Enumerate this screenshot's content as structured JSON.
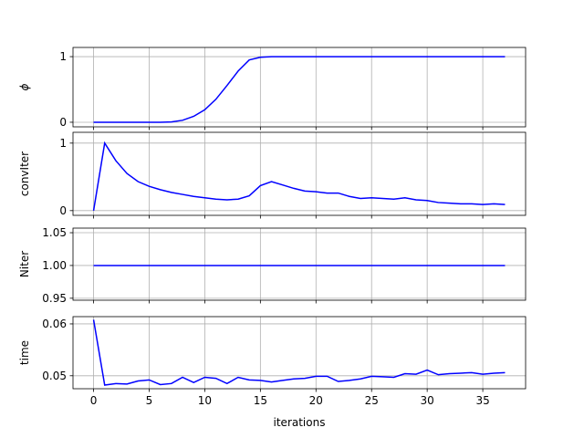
{
  "chart_data": [
    {
      "type": "line",
      "ylabel": "ϕ",
      "color": "#0000ff",
      "grid": true,
      "show_xtick_labels": false,
      "x": [
        0,
        1,
        2,
        3,
        4,
        5,
        6,
        7,
        8,
        9,
        10,
        11,
        12,
        13,
        14,
        15,
        16,
        17,
        18,
        19,
        20,
        21,
        22,
        23,
        24,
        25,
        26,
        27,
        28,
        29,
        30,
        31,
        32,
        33,
        34,
        35,
        36,
        37
      ],
      "values": [
        0,
        0,
        0,
        0,
        0,
        0,
        0,
        0.005,
        0.03,
        0.09,
        0.19,
        0.35,
        0.56,
        0.78,
        0.95,
        0.99,
        1,
        1,
        1,
        1,
        1,
        1,
        1,
        1,
        1,
        1,
        1,
        1,
        1,
        1,
        1,
        1,
        1,
        1,
        1,
        1,
        1,
        1
      ],
      "xlim": [
        -1.85,
        38.85
      ],
      "xticks": [
        0,
        5,
        10,
        15,
        20,
        25,
        30,
        35
      ],
      "ylim": [
        -0.07,
        1.14
      ],
      "yticks": [
        0,
        1
      ]
    },
    {
      "type": "line",
      "ylabel": "convIter",
      "color": "#0000ff",
      "grid": true,
      "show_xtick_labels": false,
      "x": [
        0,
        1,
        2,
        3,
        4,
        5,
        6,
        7,
        8,
        9,
        10,
        11,
        12,
        13,
        14,
        15,
        16,
        17,
        18,
        19,
        20,
        21,
        22,
        23,
        24,
        25,
        26,
        27,
        28,
        29,
        30,
        31,
        32,
        33,
        34,
        35,
        36,
        37
      ],
      "values": [
        0,
        1,
        0.74,
        0.55,
        0.43,
        0.36,
        0.31,
        0.27,
        0.24,
        0.21,
        0.19,
        0.17,
        0.16,
        0.17,
        0.22,
        0.37,
        0.43,
        0.38,
        0.33,
        0.29,
        0.28,
        0.26,
        0.26,
        0.21,
        0.18,
        0.19,
        0.18,
        0.17,
        0.19,
        0.16,
        0.15,
        0.12,
        0.11,
        0.1,
        0.1,
        0.09,
        0.1,
        0.09
      ],
      "xlim": [
        -1.85,
        38.85
      ],
      "xticks": [
        0,
        5,
        10,
        15,
        20,
        25,
        30,
        35
      ],
      "ylim": [
        -0.07,
        1.16
      ],
      "yticks": [
        0,
        1
      ]
    },
    {
      "type": "line",
      "ylabel": "Niter",
      "color": "#0000ff",
      "grid": true,
      "show_xtick_labels": false,
      "x": [
        0,
        1,
        2,
        3,
        4,
        5,
        6,
        7,
        8,
        9,
        10,
        11,
        12,
        13,
        14,
        15,
        16,
        17,
        18,
        19,
        20,
        21,
        22,
        23,
        24,
        25,
        26,
        27,
        28,
        29,
        30,
        31,
        32,
        33,
        34,
        35,
        36,
        37
      ],
      "values": [
        1,
        1,
        1,
        1,
        1,
        1,
        1,
        1,
        1,
        1,
        1,
        1,
        1,
        1,
        1,
        1,
        1,
        1,
        1,
        1,
        1,
        1,
        1,
        1,
        1,
        1,
        1,
        1,
        1,
        1,
        1,
        1,
        1,
        1,
        1,
        1,
        1,
        1
      ],
      "xlim": [
        -1.85,
        38.85
      ],
      "xticks": [
        0,
        5,
        10,
        15,
        20,
        25,
        30,
        35
      ],
      "ylim": [
        0.947,
        1.057
      ],
      "yticks": [
        0.95,
        {
          "value": 1,
          "label": "1.00"
        },
        1.05
      ]
    },
    {
      "type": "line",
      "ylabel": "time",
      "xlabel": "iterations",
      "color": "#0000ff",
      "grid": true,
      "show_xtick_labels": true,
      "x": [
        0,
        1,
        2,
        3,
        4,
        5,
        6,
        7,
        8,
        9,
        10,
        11,
        12,
        13,
        14,
        15,
        16,
        17,
        18,
        19,
        20,
        21,
        22,
        23,
        24,
        25,
        26,
        27,
        28,
        29,
        30,
        31,
        32,
        33,
        34,
        35,
        36,
        37
      ],
      "values": [
        0.0608,
        0.0482,
        0.0485,
        0.0484,
        0.049,
        0.0492,
        0.0483,
        0.0485,
        0.0497,
        0.0487,
        0.0497,
        0.0495,
        0.0485,
        0.0497,
        0.0492,
        0.0491,
        0.0488,
        0.0491,
        0.0494,
        0.0495,
        0.0499,
        0.0499,
        0.0489,
        0.0491,
        0.0494,
        0.0499,
        0.0498,
        0.0497,
        0.0504,
        0.0503,
        0.0511,
        0.0502,
        0.0504,
        0.0505,
        0.0506,
        0.0503,
        0.0505,
        0.0506
      ],
      "xlim": [
        -1.85,
        38.85
      ],
      "xticks": [
        0,
        5,
        10,
        15,
        20,
        25,
        30,
        35
      ],
      "ylim": [
        0.0475,
        0.0614
      ],
      "yticks": [
        0.05,
        0.06
      ]
    }
  ]
}
